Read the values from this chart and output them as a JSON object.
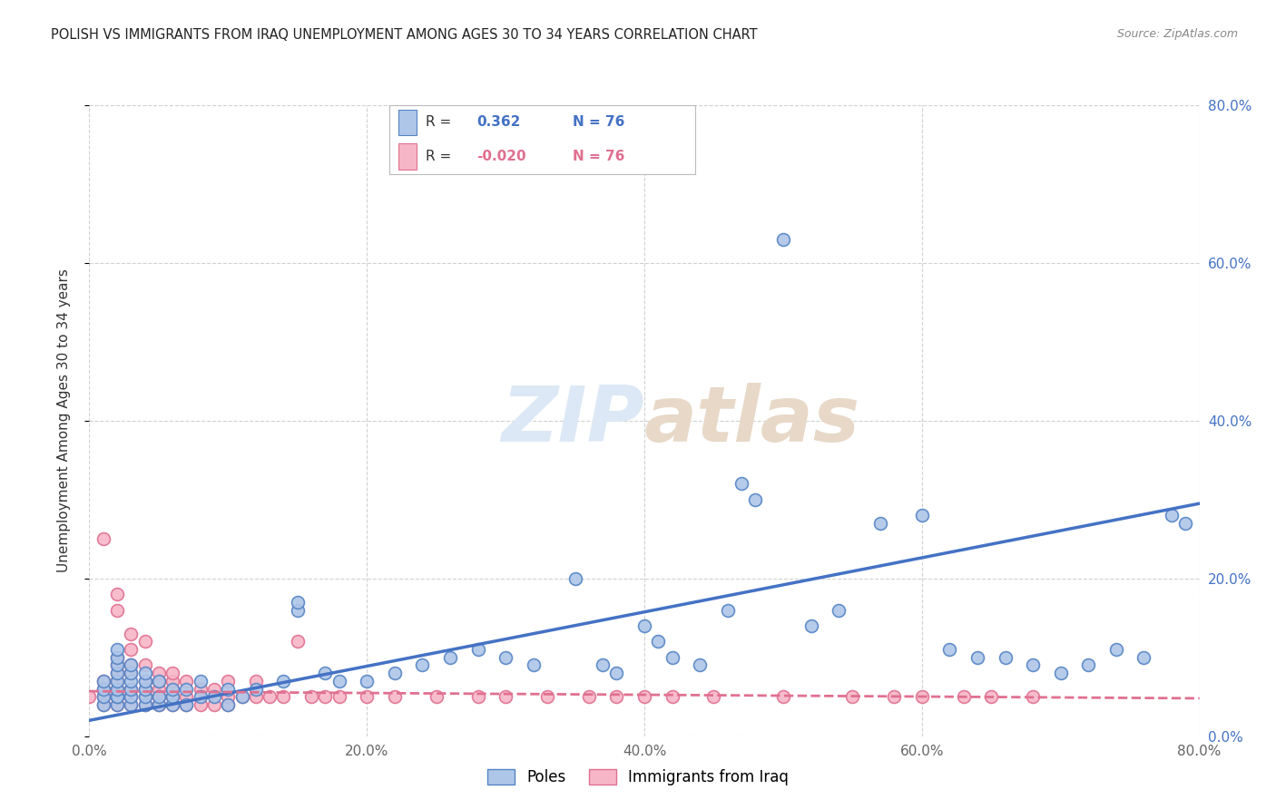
{
  "title": "POLISH VS IMMIGRANTS FROM IRAQ UNEMPLOYMENT AMONG AGES 30 TO 34 YEARS CORRELATION CHART",
  "source": "Source: ZipAtlas.com",
  "ylabel": "Unemployment Among Ages 30 to 34 years",
  "xlim": [
    0.0,
    0.8
  ],
  "ylim": [
    0.0,
    0.8
  ],
  "legend_R_poles": "0.362",
  "legend_R_iraq": "-0.020",
  "legend_N": "76",
  "poles_color": "#aec6e8",
  "iraq_color": "#f7b6c8",
  "poles_edge_color": "#5585c5",
  "iraq_edge_color": "#e07090",
  "poles_line_color": "#4472c4",
  "iraq_line_color": "#e07090",
  "title_color": "#333333",
  "right_axis_color": "#4472c4",
  "watermark_color": "#dce8f5",
  "background_color": "#ffffff",
  "grid_color": "#cccccc",
  "poles_x": [
    0.01,
    0.01,
    0.01,
    0.01,
    0.02,
    0.02,
    0.02,
    0.02,
    0.02,
    0.02,
    0.02,
    0.02,
    0.02,
    0.03,
    0.03,
    0.03,
    0.03,
    0.03,
    0.03,
    0.04,
    0.04,
    0.04,
    0.04,
    0.04,
    0.05,
    0.05,
    0.05,
    0.06,
    0.06,
    0.06,
    0.07,
    0.07,
    0.08,
    0.08,
    0.09,
    0.1,
    0.1,
    0.11,
    0.12,
    0.14,
    0.15,
    0.15,
    0.17,
    0.18,
    0.2,
    0.22,
    0.24,
    0.26,
    0.28,
    0.3,
    0.32,
    0.35,
    0.37,
    0.38,
    0.4,
    0.41,
    0.42,
    0.44,
    0.46,
    0.47,
    0.48,
    0.5,
    0.52,
    0.54,
    0.57,
    0.6,
    0.62,
    0.64,
    0.66,
    0.68,
    0.7,
    0.72,
    0.74,
    0.76,
    0.78,
    0.79
  ],
  "poles_y": [
    0.04,
    0.05,
    0.06,
    0.07,
    0.04,
    0.05,
    0.05,
    0.06,
    0.07,
    0.08,
    0.09,
    0.1,
    0.11,
    0.04,
    0.05,
    0.06,
    0.07,
    0.08,
    0.09,
    0.04,
    0.05,
    0.06,
    0.07,
    0.08,
    0.04,
    0.05,
    0.07,
    0.04,
    0.05,
    0.06,
    0.04,
    0.06,
    0.05,
    0.07,
    0.05,
    0.04,
    0.06,
    0.05,
    0.06,
    0.07,
    0.16,
    0.17,
    0.08,
    0.07,
    0.07,
    0.08,
    0.09,
    0.1,
    0.11,
    0.1,
    0.09,
    0.2,
    0.09,
    0.08,
    0.14,
    0.12,
    0.1,
    0.09,
    0.16,
    0.32,
    0.3,
    0.63,
    0.14,
    0.16,
    0.27,
    0.28,
    0.11,
    0.1,
    0.1,
    0.09,
    0.08,
    0.09,
    0.11,
    0.1,
    0.28,
    0.27
  ],
  "iraq_x": [
    0.0,
    0.01,
    0.01,
    0.01,
    0.01,
    0.01,
    0.02,
    0.02,
    0.02,
    0.02,
    0.02,
    0.02,
    0.02,
    0.02,
    0.02,
    0.02,
    0.03,
    0.03,
    0.03,
    0.03,
    0.03,
    0.03,
    0.03,
    0.04,
    0.04,
    0.04,
    0.04,
    0.04,
    0.04,
    0.05,
    0.05,
    0.05,
    0.05,
    0.05,
    0.06,
    0.06,
    0.06,
    0.06,
    0.06,
    0.07,
    0.07,
    0.07,
    0.08,
    0.08,
    0.09,
    0.09,
    0.1,
    0.1,
    0.1,
    0.11,
    0.12,
    0.12,
    0.13,
    0.14,
    0.15,
    0.16,
    0.17,
    0.18,
    0.2,
    0.22,
    0.25,
    0.28,
    0.3,
    0.33,
    0.36,
    0.38,
    0.4,
    0.42,
    0.45,
    0.5,
    0.55,
    0.58,
    0.6,
    0.63,
    0.65,
    0.68
  ],
  "iraq_y": [
    0.05,
    0.04,
    0.05,
    0.06,
    0.07,
    0.25,
    0.04,
    0.05,
    0.05,
    0.06,
    0.07,
    0.08,
    0.09,
    0.1,
    0.16,
    0.18,
    0.04,
    0.05,
    0.06,
    0.08,
    0.09,
    0.11,
    0.13,
    0.04,
    0.05,
    0.06,
    0.07,
    0.09,
    0.12,
    0.04,
    0.05,
    0.06,
    0.07,
    0.08,
    0.04,
    0.05,
    0.06,
    0.07,
    0.08,
    0.04,
    0.05,
    0.07,
    0.04,
    0.06,
    0.04,
    0.06,
    0.04,
    0.05,
    0.07,
    0.05,
    0.05,
    0.07,
    0.05,
    0.05,
    0.12,
    0.05,
    0.05,
    0.05,
    0.05,
    0.05,
    0.05,
    0.05,
    0.05,
    0.05,
    0.05,
    0.05,
    0.05,
    0.05,
    0.05,
    0.05,
    0.05,
    0.05,
    0.05,
    0.05,
    0.05,
    0.05
  ],
  "poles_trend_x": [
    0.0,
    0.8
  ],
  "poles_trend_y": [
    0.02,
    0.295
  ],
  "iraq_trend_x": [
    0.0,
    0.8
  ],
  "iraq_trend_y": [
    0.057,
    0.048
  ]
}
